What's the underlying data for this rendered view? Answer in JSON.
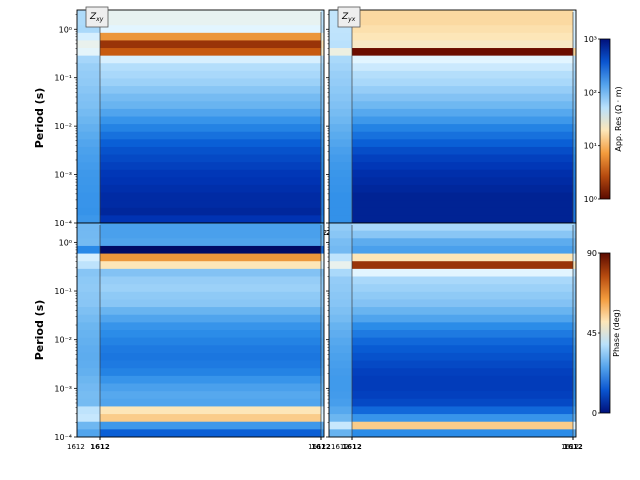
{
  "colors": {
    "band_cmap": [
      "#000b66",
      "#0033b3",
      "#0a5fd6",
      "#2b8ce8",
      "#69b4f0",
      "#a9d8fa",
      "#e2f5ff",
      "#fde6b8",
      "#f5a545",
      "#c75a10",
      "#6b0d00"
    ],
    "frame": "#000000",
    "note_border": "#555555",
    "note_bg": "#eeeeee"
  },
  "chart_data": [
    {
      "type": "heatmap",
      "panel": "Zxy",
      "annotation": "Z",
      "annotation_sub": "xy",
      "ylabel": "Period (s)",
      "yscale": "log",
      "ylim": [
        0.0001,
        2.5
      ],
      "yticks": [
        "10⁻⁴",
        "10⁻³",
        "10⁻²",
        "10⁻¹",
        "10⁰"
      ],
      "xticks": [
        "1612",
        "1612",
        "1612",
        "1612"
      ],
      "station_columns": [
        1612,
        1612
      ],
      "band_values": [
        0.62,
        0.62,
        0.6,
        0.82,
        0.95,
        0.9,
        0.58,
        0.52,
        0.5,
        0.48,
        0.45,
        0.42,
        0.4,
        0.36,
        0.32,
        0.28,
        0.24,
        0.2,
        0.17,
        0.15,
        0.13,
        0.11,
        0.1,
        0.09,
        0.08,
        0.08,
        0.07,
        0.1
      ]
    },
    {
      "type": "heatmap",
      "panel": "Zyx",
      "annotation": "Z",
      "annotation_sub": "yx",
      "yscale": "log",
      "ylim": [
        0.0001,
        2.5
      ],
      "station_columns": [
        1612,
        1612
      ],
      "band_values": [
        0.72,
        0.72,
        0.71,
        0.7,
        0.68,
        1.0,
        0.6,
        0.56,
        0.52,
        0.5,
        0.47,
        0.44,
        0.41,
        0.37,
        0.33,
        0.28,
        0.24,
        0.2,
        0.16,
        0.13,
        0.11,
        0.09,
        0.08,
        0.07,
        0.06,
        0.06,
        0.06,
        0.06
      ]
    },
    {
      "type": "heatmap",
      "panel": "Phase xy",
      "ylabel": "Period (s)",
      "yscale": "log",
      "ylim": [
        0.0001,
        2.5
      ],
      "yticks": [
        "10⁻⁴",
        "10⁻³",
        "10⁻²",
        "10⁻¹",
        "10⁰"
      ],
      "xticks": [
        "1612",
        "1612",
        "1612",
        "1612"
      ],
      "station_columns": [
        1612,
        1612
      ],
      "band_values": [
        0.35,
        0.35,
        0.36,
        0.0,
        0.82,
        0.7,
        0.44,
        0.47,
        0.48,
        0.46,
        0.45,
        0.4,
        0.36,
        0.32,
        0.3,
        0.28,
        0.26,
        0.25,
        0.26,
        0.28,
        0.32,
        0.35,
        0.37,
        0.36,
        0.7,
        0.74,
        0.33,
        0.2
      ]
    },
    {
      "type": "heatmap",
      "panel": "Phase yx",
      "yscale": "log",
      "ylim": [
        0.0001,
        2.5
      ],
      "xticks": [
        "1612",
        "1612",
        "1612",
        "1612"
      ],
      "station_columns": [
        1612,
        1612
      ],
      "band_values": [
        0.5,
        0.45,
        0.38,
        0.35,
        0.7,
        0.95,
        0.6,
        0.5,
        0.48,
        0.46,
        0.44,
        0.4,
        0.36,
        0.3,
        0.26,
        0.22,
        0.19,
        0.17,
        0.15,
        0.13,
        0.12,
        0.12,
        0.13,
        0.15,
        0.22,
        0.32,
        0.74,
        0.3
      ]
    }
  ],
  "colorbars": [
    {
      "name": "resistivity",
      "label": "App. Res (Ω · m)",
      "scale": "log",
      "range": [
        1,
        1000
      ],
      "ticks": [
        "10⁰",
        "10¹",
        "10²",
        "10³"
      ],
      "colors": [
        "#5a0a00",
        "#b64a0f",
        "#f39b3c",
        "#fde6b8",
        "#b9e1fb",
        "#54a3ec",
        "#0a55d0",
        "#00107a"
      ]
    },
    {
      "name": "phase",
      "label": "Phase (deg)",
      "scale": "linear",
      "range": [
        0,
        90
      ],
      "ticks": [
        "0",
        "45",
        "90"
      ],
      "colors": [
        "#00107a",
        "#0a55d0",
        "#54a3ec",
        "#b9e1fb",
        "#fde6b8",
        "#f39b3c",
        "#b64a0f",
        "#5a0a00"
      ]
    }
  ]
}
